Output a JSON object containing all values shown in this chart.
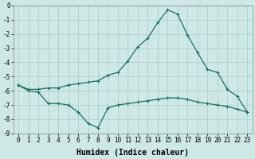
{
  "xlabel": "Humidex (Indice chaleur)",
  "ylabel": "",
  "bg_color": "#cde8e5",
  "grid_color": "#b0d0cc",
  "line_color": "#1a6e65",
  "xlim": [
    -0.5,
    23.5
  ],
  "ylim": [
    -9,
    0
  ],
  "xticks": [
    0,
    1,
    2,
    3,
    4,
    5,
    6,
    7,
    8,
    9,
    10,
    11,
    12,
    13,
    14,
    15,
    16,
    17,
    18,
    19,
    20,
    21,
    22,
    23
  ],
  "yticks": [
    0,
    -1,
    -2,
    -3,
    -4,
    -5,
    -6,
    -7,
    -8,
    -9
  ],
  "line1_x": [
    0,
    1,
    2,
    3,
    4,
    5,
    6,
    7,
    8,
    9,
    10,
    11,
    12,
    13,
    14,
    15,
    16,
    17,
    18,
    19,
    20,
    21,
    22,
    23
  ],
  "line1_y": [
    -5.6,
    -5.9,
    -5.9,
    -5.8,
    -5.8,
    -5.6,
    -5.5,
    -5.4,
    -5.3,
    -4.9,
    -4.7,
    -3.9,
    -2.9,
    -2.3,
    -1.2,
    -0.3,
    -0.6,
    -2.1,
    -3.3,
    -4.5,
    -4.7,
    -5.9,
    -6.4,
    -7.5
  ],
  "line2_x": [
    0,
    1,
    2,
    3,
    4,
    5,
    6,
    7,
    8,
    9,
    10,
    11,
    12,
    13,
    14,
    15,
    16,
    17,
    18,
    19,
    20,
    21,
    22,
    23
  ],
  "line2_y": [
    -5.6,
    -6.0,
    -6.1,
    -6.9,
    -6.9,
    -7.0,
    -7.5,
    -8.3,
    -8.6,
    -7.2,
    -7.0,
    -6.9,
    -6.8,
    -6.7,
    -6.6,
    -6.5,
    -6.5,
    -6.6,
    -6.8,
    -6.9,
    -7.0,
    -7.1,
    -7.3,
    -7.5
  ],
  "marker": "+",
  "markersize": 3,
  "linewidth": 0.9,
  "xlabel_fontsize": 7,
  "tick_fontsize": 5.5
}
